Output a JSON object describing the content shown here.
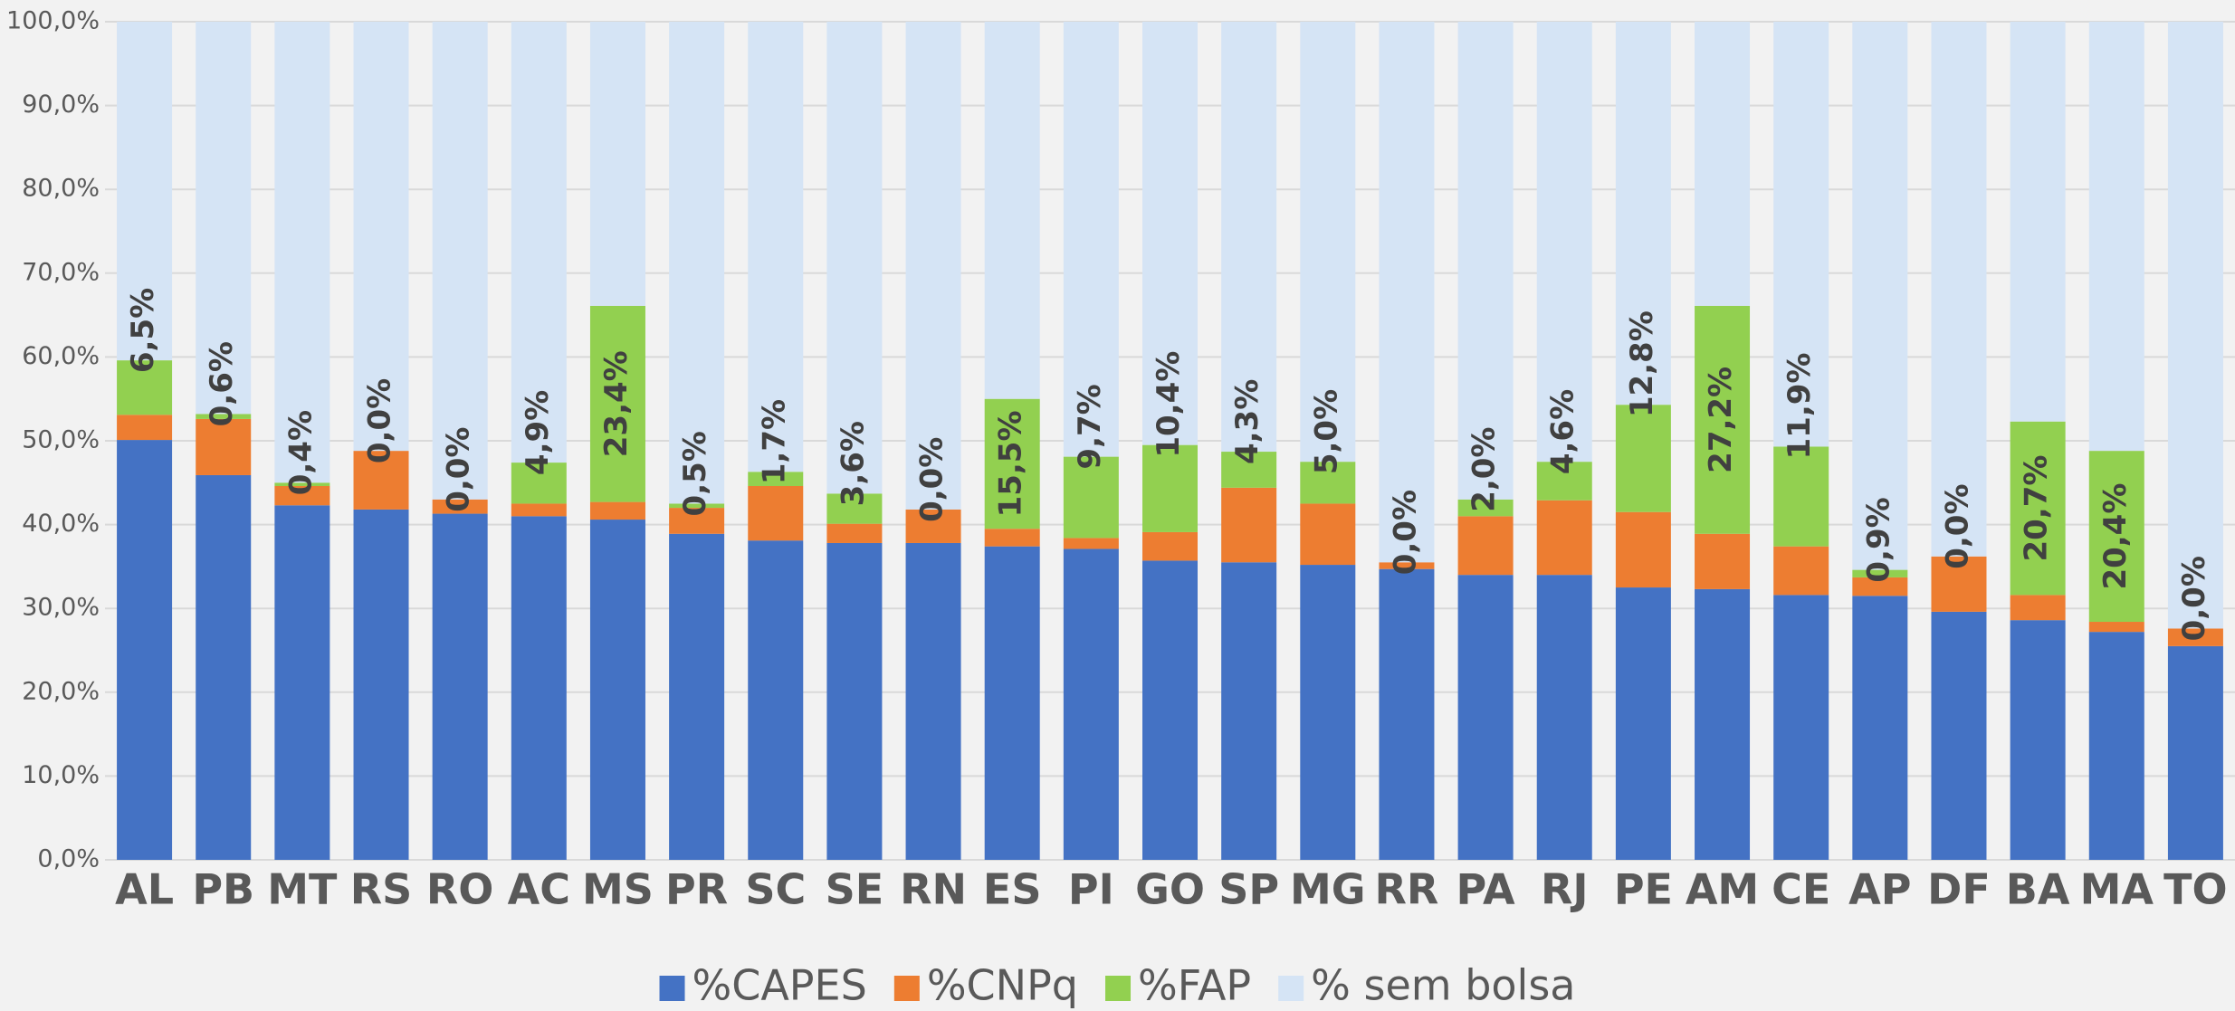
{
  "chart_data": {
    "type": "stacked_bar",
    "categories": [
      "AL",
      "PB",
      "MT",
      "RS",
      "RO",
      "AC",
      "MS",
      "PR",
      "SC",
      "SE",
      "RN",
      "ES",
      "PI",
      "GO",
      "SP",
      "MG",
      "RR",
      "PA",
      "RJ",
      "PE",
      "AM",
      "CE",
      "AP",
      "DF",
      "BA",
      "MA",
      "TO"
    ],
    "series": [
      {
        "name": "%CAPES",
        "color": "#4472c4",
        "values": [
          50.1,
          45.9,
          42.3,
          41.8,
          41.3,
          41.0,
          40.6,
          38.9,
          38.1,
          37.8,
          37.8,
          37.4,
          37.1,
          35.7,
          35.5,
          35.2,
          34.7,
          34.0,
          34.0,
          32.5,
          32.3,
          31.6,
          31.5,
          29.6,
          28.6,
          27.2,
          25.5
        ]
      },
      {
        "name": "%CNPq",
        "color": "#ed7d31",
        "values": [
          3.0,
          6.7,
          2.3,
          7.0,
          1.7,
          1.5,
          2.1,
          3.1,
          6.5,
          2.3,
          4.0,
          2.1,
          1.3,
          3.4,
          8.9,
          7.3,
          0.8,
          7.0,
          8.9,
          9.0,
          6.6,
          5.8,
          2.2,
          6.6,
          3.0,
          1.2,
          2.1
        ]
      },
      {
        "name": "%FAP",
        "color": "#92d050",
        "values": [
          6.5,
          0.6,
          0.4,
          0.0,
          0.0,
          4.9,
          23.4,
          0.5,
          1.7,
          3.6,
          0.0,
          15.5,
          9.7,
          10.4,
          4.3,
          5.0,
          0.0,
          2.0,
          4.6,
          12.8,
          27.2,
          11.9,
          0.9,
          0.0,
          20.7,
          20.4,
          0.0
        ],
        "value_labels": [
          "6,5%",
          "0,6%",
          "0,4%",
          "0,0%",
          "0,0%",
          "4,9%",
          "23,4%",
          "0,5%",
          "1,7%",
          "3,6%",
          "0,0%",
          "15,5%",
          "9,7%",
          "10,4%",
          "4,3%",
          "5,0%",
          "0,0%",
          "2,0%",
          "4,6%",
          "12,8%",
          "27,2%",
          "11,9%",
          "0,9%",
          "0,0%",
          "20,7%",
          "20,4%",
          "0,0%"
        ]
      },
      {
        "name": "% sem bolsa",
        "color": "#d5e4f5",
        "values": [
          40.4,
          46.8,
          55.0,
          51.2,
          57.0,
          52.6,
          33.9,
          57.5,
          53.7,
          56.3,
          58.2,
          45.0,
          51.9,
          50.5,
          51.3,
          52.5,
          64.5,
          57.0,
          52.5,
          45.7,
          33.9,
          50.7,
          65.4,
          63.8,
          47.7,
          51.2,
          72.4
        ]
      }
    ],
    "ylim": [
      0,
      100
    ],
    "yticks": [
      {
        "value": 0,
        "label": "0,0%"
      },
      {
        "value": 10,
        "label": "10,0%"
      },
      {
        "value": 20,
        "label": "20,0%"
      },
      {
        "value": 30,
        "label": "30,0%"
      },
      {
        "value": 40,
        "label": "40,0%"
      },
      {
        "value": 50,
        "label": "50,0%"
      },
      {
        "value": 60,
        "label": "60,0%"
      },
      {
        "value": 70,
        "label": "70,0%"
      },
      {
        "value": 80,
        "label": "80,0%"
      },
      {
        "value": 90,
        "label": "90,0%"
      },
      {
        "value": 100,
        "label": "100,0%"
      }
    ],
    "grid": true,
    "legend": "bottom"
  }
}
